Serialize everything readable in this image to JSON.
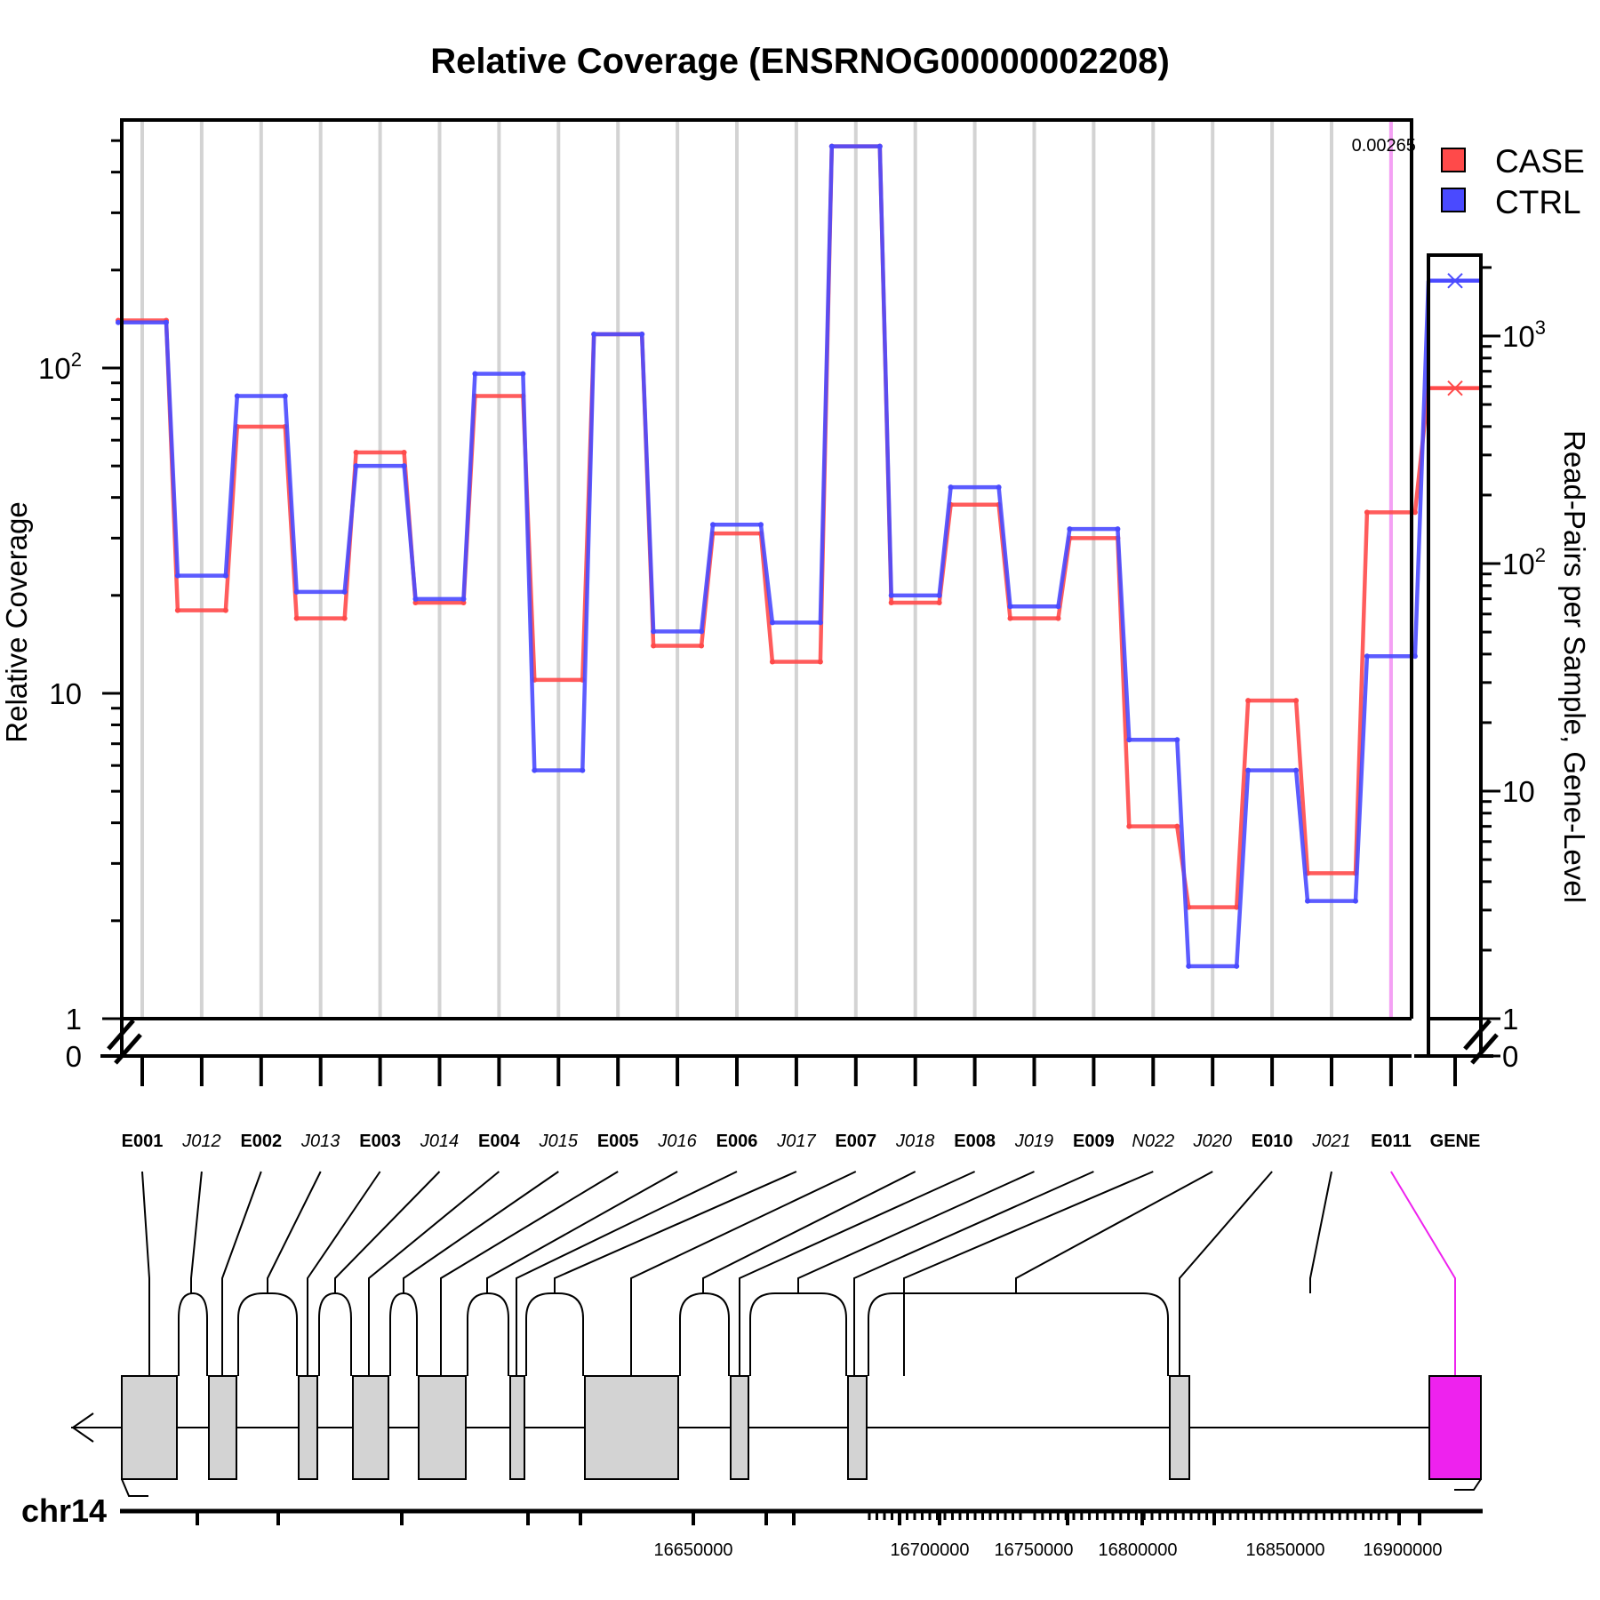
{
  "colors": {
    "case": "#ff4a4a",
    "ctrl": "#4a4aff",
    "grid": "#d3d3d3",
    "highlight": "#ee22ee",
    "highlight_light": "#f5a0f5",
    "exon": "#d3d3d3",
    "axis": "#000000"
  },
  "chart_data": {
    "type": "line",
    "title": "Relative Coverage (ENSRNOG00000002208)",
    "ylabel": "Relative Coverage",
    "y2label": "Read-Pairs per Sample, Gene-Level",
    "yscale": "log",
    "ylim": [
      0,
      500
    ],
    "y2lim": [
      0,
      2000
    ],
    "grid": true,
    "legend_position": "top-right",
    "y_ticks": [
      {
        "value": 0,
        "base": "0",
        "exp": ""
      },
      {
        "value": 1,
        "base": "1",
        "exp": ""
      },
      {
        "value": 10,
        "base": "10",
        "exp": ""
      },
      {
        "value": 100,
        "base": "10",
        "exp": "2"
      }
    ],
    "y2_ticks": [
      {
        "value": 0,
        "base": "0",
        "exp": ""
      },
      {
        "value": 1,
        "base": "1",
        "exp": ""
      },
      {
        "value": 10,
        "base": "10",
        "exp": ""
      },
      {
        "value": 100,
        "base": "10",
        "exp": "2"
      },
      {
        "value": 1000,
        "base": "10",
        "exp": "3"
      }
    ],
    "features": [
      {
        "label": "E001",
        "kind": "exon"
      },
      {
        "label": "J012",
        "kind": "junction"
      },
      {
        "label": "E002",
        "kind": "exon"
      },
      {
        "label": "J013",
        "kind": "junction"
      },
      {
        "label": "E003",
        "kind": "exon"
      },
      {
        "label": "J014",
        "kind": "junction"
      },
      {
        "label": "E004",
        "kind": "exon"
      },
      {
        "label": "J015",
        "kind": "junction"
      },
      {
        "label": "E005",
        "kind": "exon"
      },
      {
        "label": "J016",
        "kind": "junction"
      },
      {
        "label": "E006",
        "kind": "exon"
      },
      {
        "label": "J017",
        "kind": "junction"
      },
      {
        "label": "E007",
        "kind": "exon"
      },
      {
        "label": "J018",
        "kind": "junction"
      },
      {
        "label": "E008",
        "kind": "exon"
      },
      {
        "label": "J019",
        "kind": "junction"
      },
      {
        "label": "E009",
        "kind": "exon"
      },
      {
        "label": "N022",
        "kind": "junction"
      },
      {
        "label": "J020",
        "kind": "junction"
      },
      {
        "label": "E010",
        "kind": "exon"
      },
      {
        "label": "J021",
        "kind": "junction"
      },
      {
        "label": "E011",
        "kind": "exon"
      }
    ],
    "gene_label": "GENE",
    "series": [
      {
        "name": "CASE",
        "color": "#ff4a4a",
        "values": [
          140,
          18,
          66,
          17,
          55,
          19,
          82,
          11,
          127,
          14,
          31,
          12.5,
          480,
          19,
          38,
          17,
          30,
          3.9,
          2.2,
          9.5,
          2.8,
          36
        ],
        "gene": 590
      },
      {
        "name": "CTRL",
        "color": "#4a4aff",
        "values": [
          138,
          23,
          82,
          20.5,
          50,
          19.5,
          96,
          5.8,
          127,
          15.5,
          33,
          16.5,
          480,
          20,
          43,
          18.5,
          32,
          7.2,
          1.45,
          5.8,
          2.3,
          13
        ],
        "gene": 1750
      }
    ],
    "highlight": {
      "feature": "E011",
      "pvalue": "0.00265"
    },
    "transcript": {
      "chromosome": "chr14",
      "strand": "-",
      "coord_labels": [
        "16650000",
        "16700000",
        "16750000",
        "16800000",
        "16850000",
        "16900000"
      ]
    }
  }
}
